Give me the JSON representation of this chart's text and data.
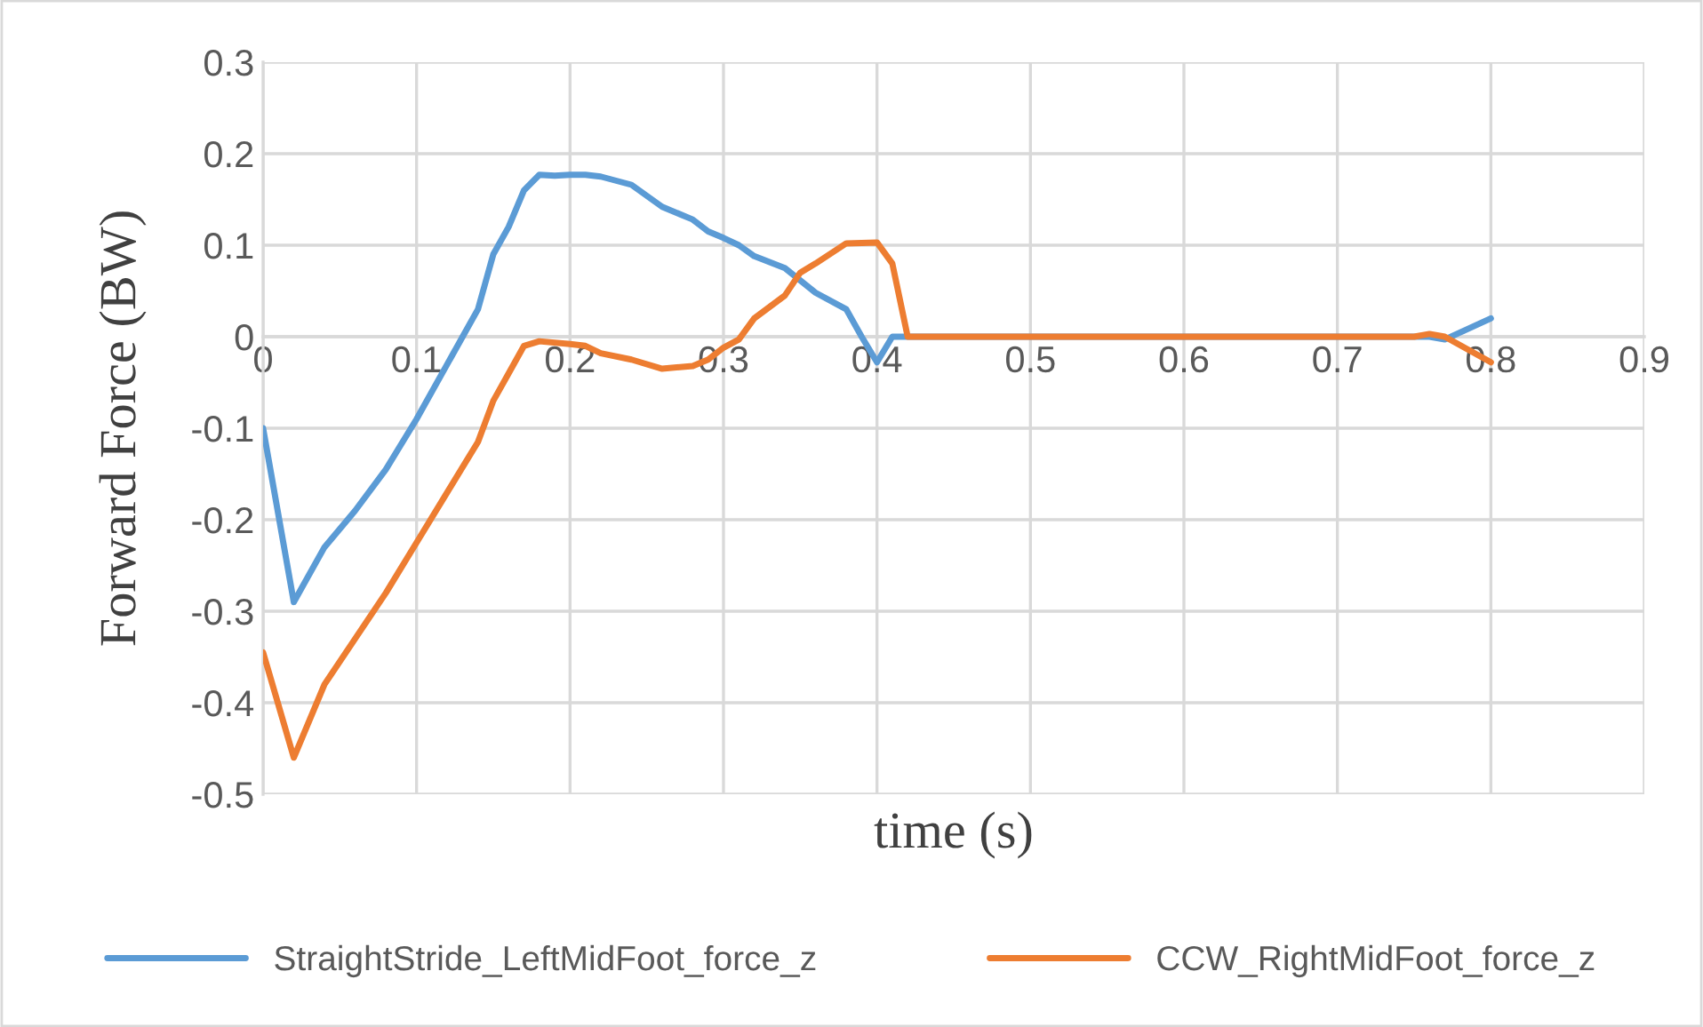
{
  "chart_data": {
    "type": "line",
    "xlabel": "time (s)",
    "ylabel": "Forward Force (BW)",
    "xlim": [
      0,
      0.9
    ],
    "xticks": [
      0,
      0.1,
      0.2,
      0.3,
      0.4,
      0.5,
      0.6,
      0.7,
      0.8,
      0.9
    ],
    "ylim": [
      -0.5,
      0.3
    ],
    "yticks": [
      -0.5,
      -0.4,
      -0.3,
      -0.2,
      -0.1,
      0,
      0.1,
      0.2,
      0.3
    ],
    "grid": true,
    "legend": "bottom",
    "marker": "none",
    "line_style": "solid",
    "series": [
      {
        "name": "StraightStride_LeftMidFoot_force_z",
        "color": "#5b9bd5",
        "x": [
          0,
          0.02,
          0.04,
          0.06,
          0.08,
          0.1,
          0.12,
          0.13,
          0.14,
          0.15,
          0.16,
          0.17,
          0.18,
          0.19,
          0.2,
          0.21,
          0.22,
          0.24,
          0.26,
          0.28,
          0.29,
          0.3,
          0.31,
          0.32,
          0.34,
          0.36,
          0.38,
          0.39,
          0.4,
          0.41,
          0.42,
          0.5,
          0.6,
          0.7,
          0.76,
          0.77,
          0.8
        ],
        "values": [
          -0.1,
          -0.29,
          -0.23,
          -0.19,
          -0.145,
          -0.09,
          -0.03,
          0.0,
          0.03,
          0.09,
          0.12,
          0.16,
          0.177,
          0.176,
          0.177,
          0.177,
          0.175,
          0.166,
          0.142,
          0.128,
          0.115,
          0.108,
          0.1,
          0.088,
          0.075,
          0.048,
          0.03,
          0.0,
          -0.028,
          0.0,
          0.0,
          0.0,
          0.0,
          0.0,
          0.0,
          -0.003,
          0.02
        ]
      },
      {
        "name": "CCW_RightMidFoot_force_z",
        "color": "#ed7d31",
        "x": [
          0,
          0.02,
          0.04,
          0.06,
          0.08,
          0.1,
          0.12,
          0.14,
          0.15,
          0.16,
          0.17,
          0.18,
          0.2,
          0.21,
          0.22,
          0.24,
          0.26,
          0.28,
          0.29,
          0.3,
          0.31,
          0.32,
          0.34,
          0.35,
          0.36,
          0.38,
          0.4,
          0.41,
          0.42,
          0.43,
          0.5,
          0.6,
          0.7,
          0.75,
          0.76,
          0.77,
          0.8
        ],
        "values": [
          -0.345,
          -0.46,
          -0.38,
          -0.33,
          -0.28,
          -0.225,
          -0.17,
          -0.115,
          -0.07,
          -0.04,
          -0.01,
          -0.005,
          -0.008,
          -0.01,
          -0.018,
          -0.025,
          -0.035,
          -0.032,
          -0.025,
          -0.012,
          -0.003,
          0.02,
          0.045,
          0.07,
          0.08,
          0.102,
          0.103,
          0.08,
          0.0,
          0.0,
          0.0,
          0.0,
          0.0,
          0.0,
          0.003,
          0.0,
          -0.028
        ]
      }
    ]
  }
}
